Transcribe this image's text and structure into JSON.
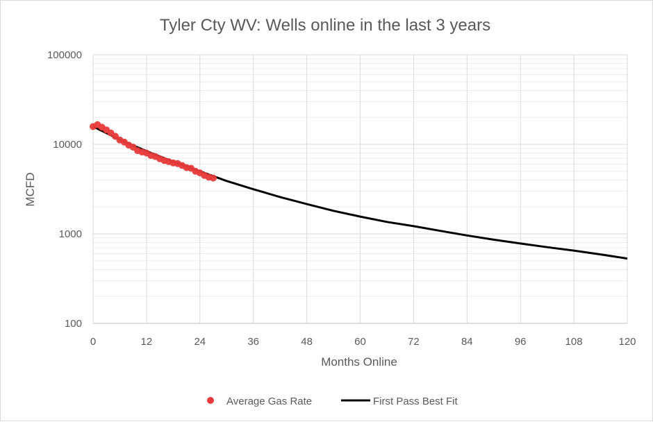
{
  "chart_data": {
    "type": "scatter",
    "title": "Tyler Cty WV:  Wells online in the last 3 years",
    "xlabel": "Months Online",
    "ylabel": "MCFD",
    "xlim": [
      0,
      120
    ],
    "ylim": [
      100,
      100000
    ],
    "yscale": "log",
    "x_ticks": [
      0,
      12,
      24,
      36,
      48,
      60,
      72,
      84,
      96,
      108,
      120
    ],
    "y_ticks": [
      100,
      1000,
      10000,
      100000
    ],
    "y_tick_labels": [
      "100",
      "1000",
      "10000",
      "100000"
    ],
    "grid": true,
    "legend_position": "bottom",
    "series": [
      {
        "name": "Average Gas Rate",
        "kind": "scatter",
        "color": "#e83a3a",
        "x": [
          0,
          1,
          2,
          3,
          4,
          5,
          6,
          7,
          8,
          9,
          10,
          11,
          12,
          13,
          14,
          15,
          16,
          17,
          18,
          19,
          20,
          21,
          22,
          23,
          24,
          25,
          26,
          27
        ],
        "y": [
          15800,
          16600,
          15500,
          14500,
          13400,
          12300,
          11200,
          10600,
          9800,
          9300,
          8500,
          8200,
          8000,
          7500,
          7300,
          6900,
          6600,
          6400,
          6200,
          6100,
          5800,
          5500,
          5400,
          5000,
          4800,
          4500,
          4300,
          4200
        ]
      },
      {
        "name": "First Pass Best Fit",
        "kind": "line",
        "color": "#000000",
        "x": [
          0,
          6,
          12,
          18,
          24,
          30,
          36,
          42,
          48,
          54,
          60,
          66,
          72,
          78,
          84,
          90,
          96,
          102,
          108,
          114,
          120
        ],
        "y": [
          15800,
          11300,
          8400,
          6400,
          5000,
          3900,
          3150,
          2580,
          2150,
          1810,
          1560,
          1360,
          1220,
          1080,
          960,
          860,
          780,
          710,
          650,
          590,
          530
        ]
      }
    ]
  }
}
